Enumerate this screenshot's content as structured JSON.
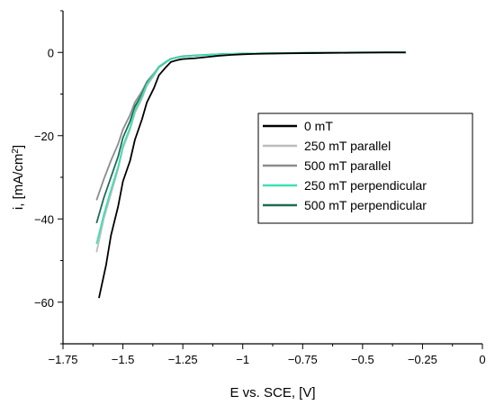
{
  "chart_data": {
    "type": "line",
    "xlabel": "E vs. SCE, [V]",
    "ylabel_main": "i, [mA/cm",
    "ylabel_sup": "2",
    "ylabel_end": "]",
    "xlim": [
      -1.75,
      0
    ],
    "ylim": [
      -70,
      10
    ],
    "x_ticks": [
      -1.75,
      -1.5,
      -1.25,
      -1,
      -0.75,
      -0.5,
      -0.25,
      0
    ],
    "x_tick_labels": [
      "−1.75",
      "−1.5",
      "−1.25",
      "−1",
      "−0.75",
      "−0.5",
      "−0.25",
      "0"
    ],
    "y_ticks": [
      0,
      -20,
      -40,
      -60
    ],
    "y_tick_labels": [
      "0",
      "−20",
      "−40",
      "−60"
    ],
    "grid": false,
    "legend_position": "right",
    "series": [
      {
        "name": "0 mT",
        "color": "#000000",
        "x": [
          -1.6,
          -1.57,
          -1.55,
          -1.52,
          -1.5,
          -1.47,
          -1.45,
          -1.42,
          -1.4,
          -1.37,
          -1.35,
          -1.32,
          -1.3,
          -1.27,
          -1.25,
          -1.2,
          -1.15,
          -1.1,
          -1.05,
          -1.0,
          -0.95,
          -0.9,
          -0.8,
          -0.7,
          -0.6,
          -0.5,
          -0.4,
          -0.32
        ],
        "y": [
          -59,
          -51,
          -44,
          -37,
          -31,
          -26,
          -21,
          -16,
          -12,
          -8.5,
          -5.5,
          -3.5,
          -2.3,
          -1.8,
          -1.6,
          -1.4,
          -1.1,
          -0.8,
          -0.6,
          -0.45,
          -0.35,
          -0.3,
          -0.2,
          -0.15,
          -0.1,
          -0.05,
          0,
          0
        ]
      },
      {
        "name": "250 mT parallel",
        "color": "#bcbcbc",
        "x": [
          -1.61,
          -1.58,
          -1.55,
          -1.52,
          -1.5,
          -1.47,
          -1.45,
          -1.42,
          -1.4,
          -1.37,
          -1.35,
          -1.32,
          -1.3,
          -1.27,
          -1.25,
          -1.2,
          -1.15,
          -1.1,
          -1.05,
          -1.0,
          -0.9,
          -0.8,
          -0.7,
          -0.6,
          -0.5,
          -0.4,
          -0.32
        ],
        "y": [
          -48,
          -40,
          -34,
          -28,
          -23,
          -18.5,
          -14.5,
          -11,
          -8,
          -5.5,
          -3.6,
          -2.3,
          -1.6,
          -1.2,
          -1.0,
          -0.8,
          -0.6,
          -0.45,
          -0.35,
          -0.3,
          -0.2,
          -0.15,
          -0.1,
          -0.05,
          0,
          0,
          0
        ]
      },
      {
        "name": "500 mT parallel",
        "color": "#8c8c8c",
        "x": [
          -1.61,
          -1.58,
          -1.55,
          -1.52,
          -1.5,
          -1.47,
          -1.45,
          -1.42,
          -1.4,
          -1.37,
          -1.35,
          -1.32,
          -1.3,
          -1.27,
          -1.25,
          -1.2,
          -1.15,
          -1.1,
          -1.05,
          -1.0,
          -0.9,
          -0.8,
          -0.7,
          -0.6,
          -0.5,
          -0.4,
          -0.32
        ],
        "y": [
          -35.5,
          -30.5,
          -26,
          -22,
          -18.5,
          -15,
          -12,
          -9.3,
          -7,
          -5,
          -3.4,
          -2.2,
          -1.5,
          -1.1,
          -0.9,
          -0.7,
          -0.55,
          -0.45,
          -0.35,
          -0.3,
          -0.2,
          -0.15,
          -0.1,
          -0.05,
          0,
          0,
          0
        ]
      },
      {
        "name": "250 mT perpendicular",
        "color": "#3fe0b4",
        "x": [
          -1.61,
          -1.58,
          -1.55,
          -1.52,
          -1.5,
          -1.47,
          -1.45,
          -1.42,
          -1.4,
          -1.37,
          -1.35,
          -1.32,
          -1.3,
          -1.27,
          -1.25,
          -1.2,
          -1.15,
          -1.1,
          -1.05,
          -1.0,
          -0.9,
          -0.8,
          -0.7,
          -0.6,
          -0.5,
          -0.4,
          -0.32
        ],
        "y": [
          -46,
          -39,
          -33,
          -27.5,
          -22.5,
          -18,
          -14,
          -10.5,
          -7.6,
          -5.2,
          -3.4,
          -2.2,
          -1.6,
          -1.2,
          -1.0,
          -0.8,
          -0.6,
          -0.45,
          -0.35,
          -0.3,
          -0.2,
          -0.15,
          -0.1,
          -0.05,
          0,
          0,
          0
        ]
      },
      {
        "name": "500 mT perpendicular",
        "color": "#1f6b54",
        "x": [
          -1.61,
          -1.58,
          -1.55,
          -1.52,
          -1.5,
          -1.47,
          -1.45,
          -1.42,
          -1.4,
          -1.37,
          -1.35,
          -1.32,
          -1.3,
          -1.27,
          -1.25,
          -1.2,
          -1.15,
          -1.1,
          -1.05,
          -1.0,
          -0.9,
          -0.8,
          -0.7,
          -0.6,
          -0.5,
          -0.4,
          -0.32
        ],
        "y": [
          -41,
          -35,
          -30,
          -25,
          -20.5,
          -16.5,
          -13,
          -10,
          -7.4,
          -5.2,
          -3.5,
          -2.3,
          -1.6,
          -1.2,
          -1.0,
          -0.8,
          -0.6,
          -0.45,
          -0.35,
          -0.3,
          -0.2,
          -0.15,
          -0.1,
          -0.05,
          0,
          0,
          0
        ]
      }
    ]
  }
}
